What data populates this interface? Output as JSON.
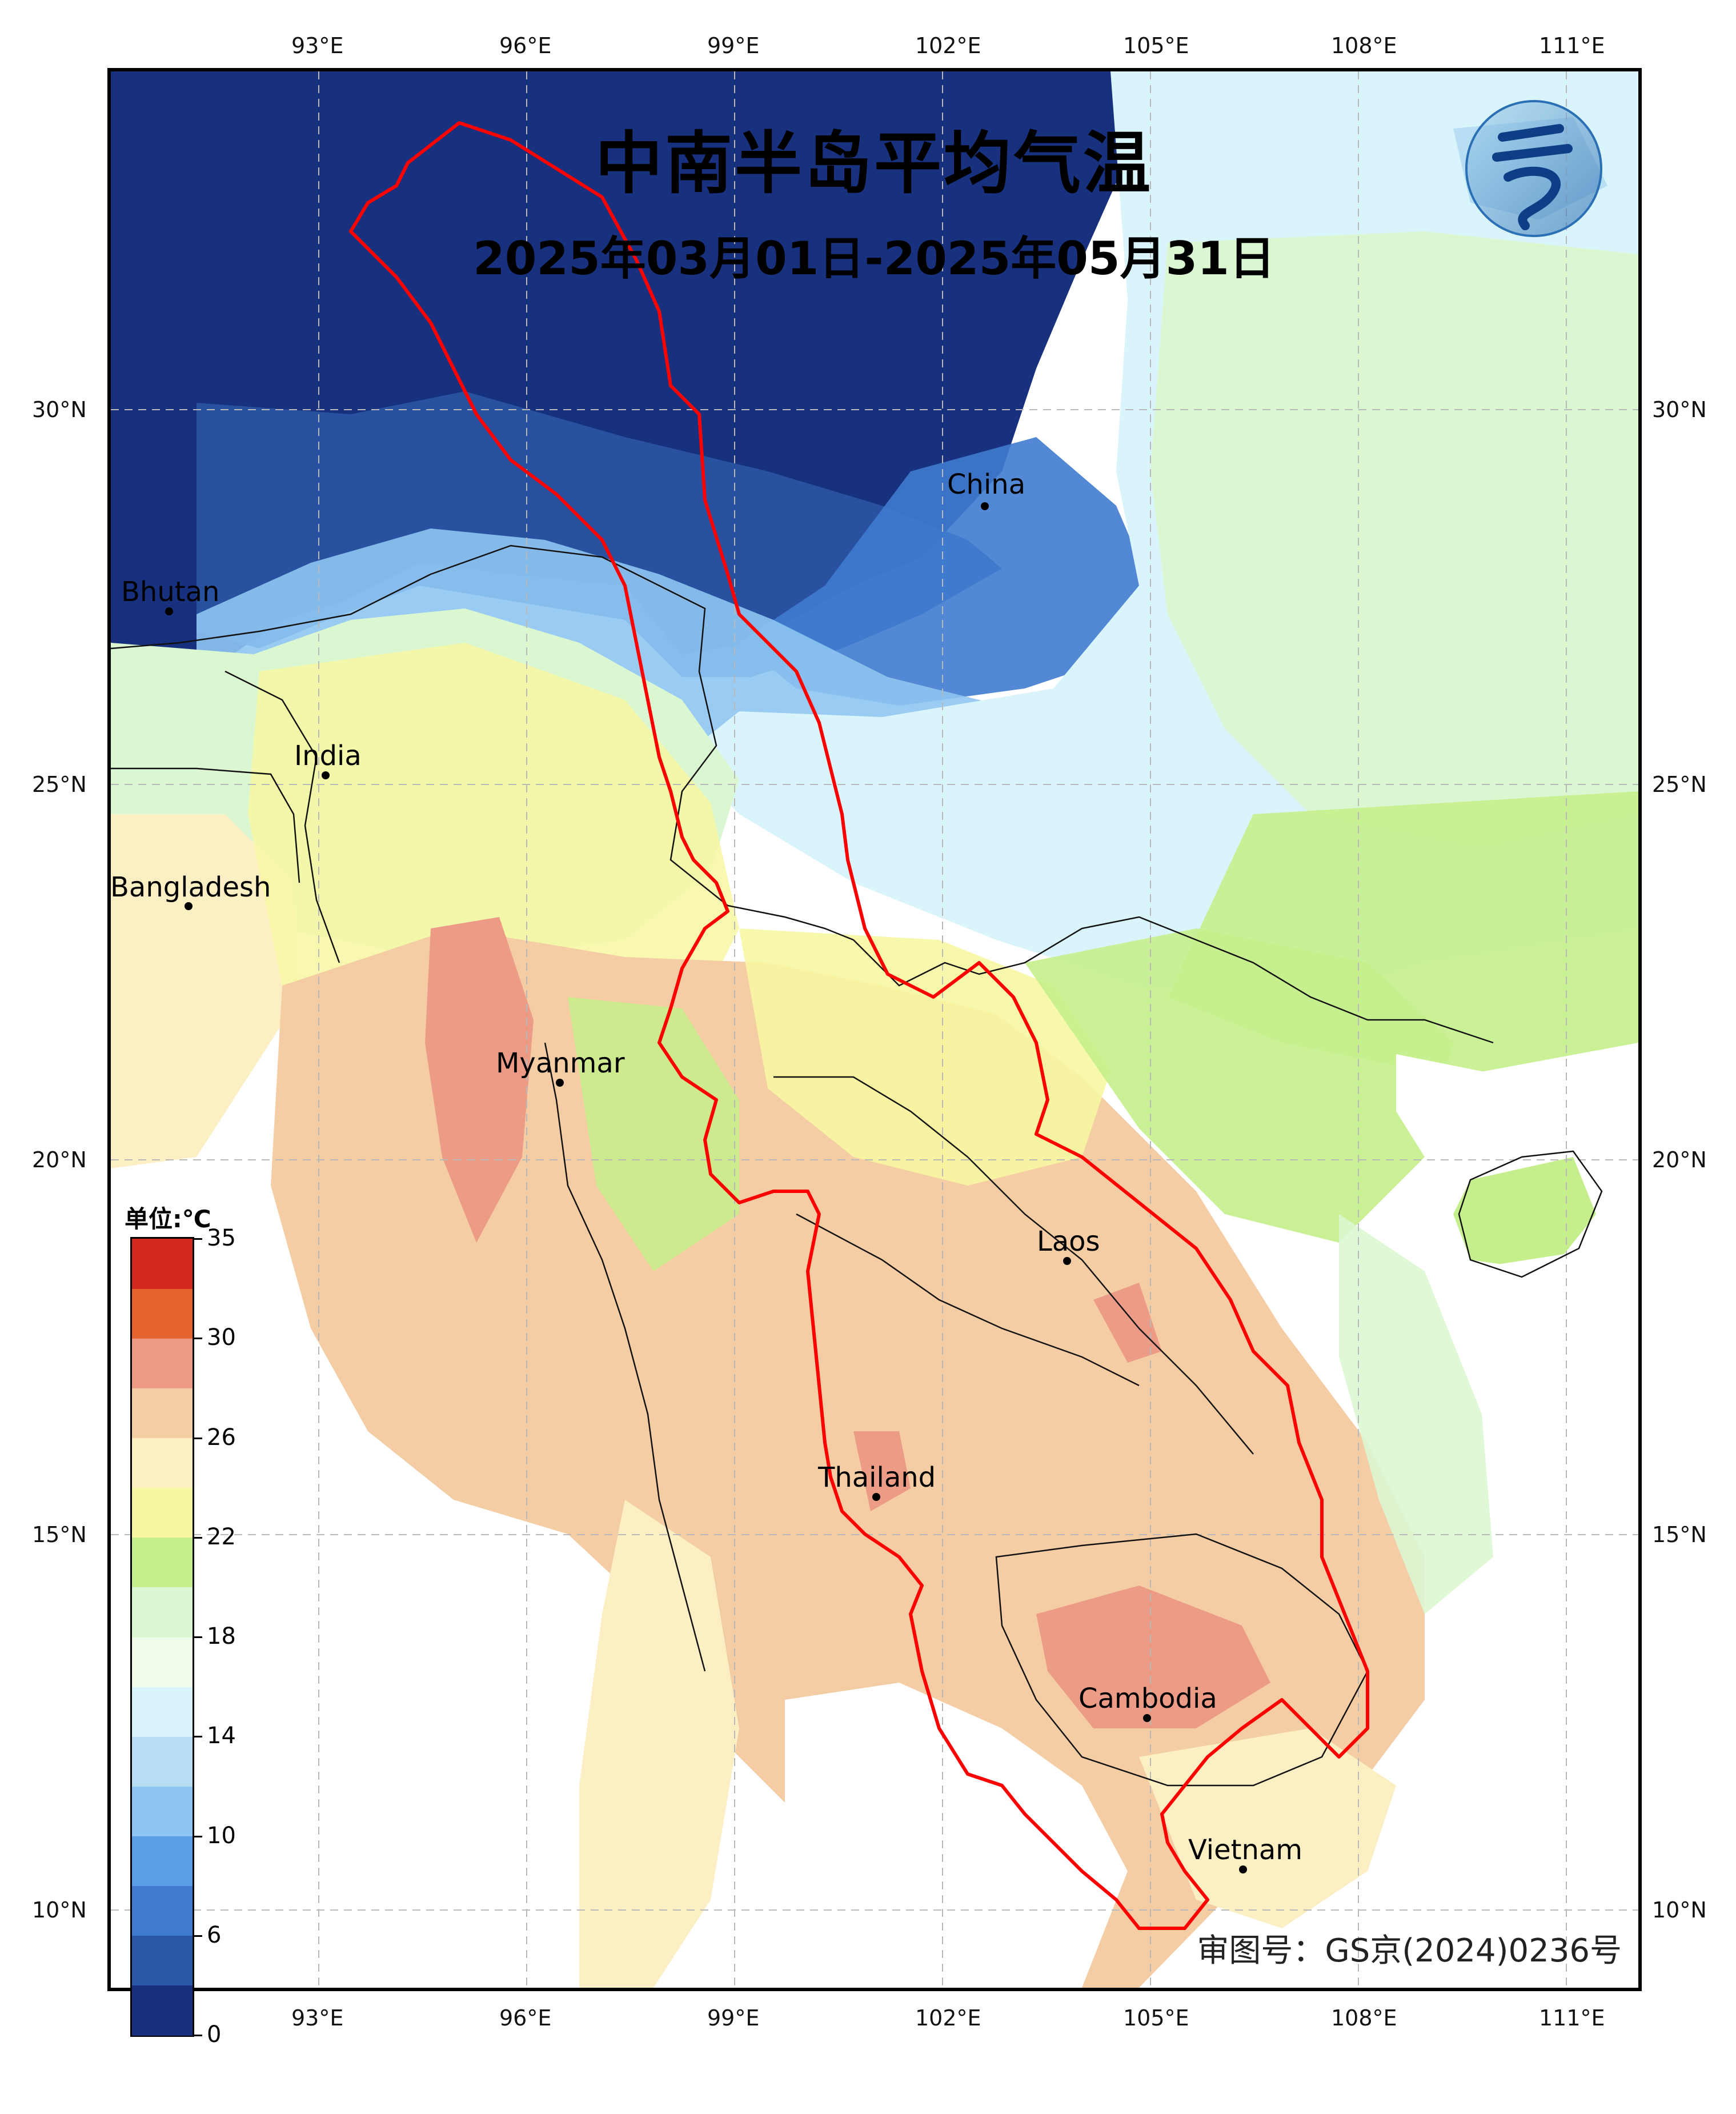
{
  "title": "中南半岛平均气温",
  "subtitle": "2025年03月01日-2025年05月31日",
  "approval_number": "审图号：GS京(2024)0236号",
  "colorbar": {
    "unit_label": "单位:℃",
    "tick_labels": [
      "35",
      "30",
      "26",
      "22",
      "18",
      "14",
      "10",
      "6",
      "0"
    ],
    "colors": [
      "#17317e",
      "#2b58a6",
      "#3f7bcf",
      "#5b9fe8",
      "#8ec5f2",
      "#b7def2",
      "#d9f5fb",
      "#effbeb",
      "#dbf7d2",
      "#c5ef8c",
      "#f7f7a3",
      "#fcefc4",
      "#f5cda4",
      "#ec9c86",
      "#e6642e",
      "#d0281e"
    ]
  },
  "axes": {
    "lon_labels": [
      "93°E",
      "96°E",
      "99°E",
      "102°E",
      "105°E",
      "108°E",
      "111°E"
    ],
    "lat_labels": [
      "30°N",
      "25°N",
      "20°N",
      "15°N",
      "10°N"
    ]
  },
  "places": [
    {
      "name": "China"
    },
    {
      "name": "Bhutan"
    },
    {
      "name": "India"
    },
    {
      "name": "Bangladesh"
    },
    {
      "name": "Myanmar"
    },
    {
      "name": "Laos"
    },
    {
      "name": "Thailand"
    },
    {
      "name": "Cambodia"
    },
    {
      "name": "Vietnam"
    }
  ]
}
